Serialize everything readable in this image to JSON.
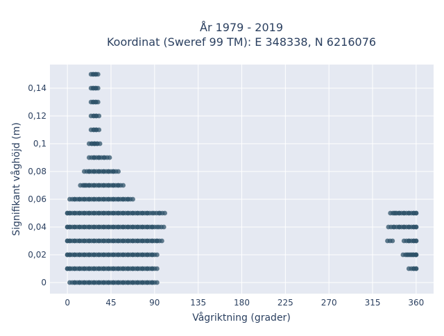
{
  "chart_data": {
    "type": "scatter",
    "title_line1": "År 1979 - 2019",
    "title_line2": "Koordinat (Sweref 99 TM): E 348338, N 6216076",
    "xlabel": "Vågriktning (grader)",
    "ylabel": "Signifikant våghöjd (m)",
    "xlim": [
      -18,
      378
    ],
    "ylim": [
      -0.008,
      0.157
    ],
    "x_ticks": [
      0,
      45,
      90,
      135,
      180,
      225,
      270,
      315,
      360
    ],
    "x_tick_labels": [
      "0",
      "45",
      "90",
      "135",
      "180",
      "225",
      "270",
      "315",
      "360"
    ],
    "y_ticks": [
      0,
      0.02,
      0.04,
      0.06,
      0.08,
      0.1,
      0.12,
      0.14
    ],
    "y_tick_labels": [
      "0",
      "0,02",
      "0,04",
      "0,06",
      "0,08",
      "0,1",
      "0,12",
      "0,14"
    ],
    "grid": true,
    "marker_color": "#2e5168",
    "plot_bg": "#e5e9f2",
    "series": [
      {
        "points": [
          [
            5,
            0
          ],
          [
            10,
            0
          ],
          [
            15,
            0
          ],
          [
            20,
            0
          ],
          [
            25,
            0
          ],
          [
            30,
            0
          ],
          [
            35,
            0
          ],
          [
            40,
            0
          ],
          [
            45,
            0
          ],
          [
            50,
            0
          ],
          [
            55,
            0
          ],
          [
            60,
            0
          ],
          [
            65,
            0
          ],
          [
            70,
            0
          ],
          [
            75,
            0
          ],
          [
            80,
            0
          ],
          [
            85,
            0
          ],
          [
            90,
            0
          ],
          [
            0,
            0.01
          ],
          [
            5,
            0.01
          ],
          [
            10,
            0.01
          ],
          [
            15,
            0.01
          ],
          [
            20,
            0.01
          ],
          [
            25,
            0.01
          ],
          [
            30,
            0.01
          ],
          [
            35,
            0.01
          ],
          [
            40,
            0.01
          ],
          [
            45,
            0.01
          ],
          [
            50,
            0.01
          ],
          [
            55,
            0.01
          ],
          [
            60,
            0.01
          ],
          [
            65,
            0.01
          ],
          [
            70,
            0.01
          ],
          [
            75,
            0.01
          ],
          [
            80,
            0.01
          ],
          [
            85,
            0.01
          ],
          [
            90,
            0.01
          ],
          [
            0,
            0.02
          ],
          [
            5,
            0.02
          ],
          [
            10,
            0.02
          ],
          [
            15,
            0.02
          ],
          [
            20,
            0.02
          ],
          [
            25,
            0.02
          ],
          [
            30,
            0.02
          ],
          [
            35,
            0.02
          ],
          [
            40,
            0.02
          ],
          [
            45,
            0.02
          ],
          [
            50,
            0.02
          ],
          [
            55,
            0.02
          ],
          [
            60,
            0.02
          ],
          [
            65,
            0.02
          ],
          [
            70,
            0.02
          ],
          [
            75,
            0.02
          ],
          [
            80,
            0.02
          ],
          [
            85,
            0.02
          ],
          [
            90,
            0.02
          ],
          [
            0,
            0.03
          ],
          [
            5,
            0.03
          ],
          [
            10,
            0.03
          ],
          [
            15,
            0.03
          ],
          [
            20,
            0.03
          ],
          [
            25,
            0.03
          ],
          [
            30,
            0.03
          ],
          [
            35,
            0.03
          ],
          [
            40,
            0.03
          ],
          [
            45,
            0.03
          ],
          [
            50,
            0.03
          ],
          [
            55,
            0.03
          ],
          [
            60,
            0.03
          ],
          [
            65,
            0.03
          ],
          [
            70,
            0.03
          ],
          [
            75,
            0.03
          ],
          [
            80,
            0.03
          ],
          [
            85,
            0.03
          ],
          [
            90,
            0.03
          ],
          [
            95,
            0.03
          ],
          [
            0,
            0.04
          ],
          [
            5,
            0.04
          ],
          [
            10,
            0.04
          ],
          [
            15,
            0.04
          ],
          [
            20,
            0.04
          ],
          [
            25,
            0.04
          ],
          [
            30,
            0.04
          ],
          [
            35,
            0.04
          ],
          [
            40,
            0.04
          ],
          [
            45,
            0.04
          ],
          [
            50,
            0.04
          ],
          [
            55,
            0.04
          ],
          [
            60,
            0.04
          ],
          [
            65,
            0.04
          ],
          [
            70,
            0.04
          ],
          [
            75,
            0.04
          ],
          [
            80,
            0.04
          ],
          [
            85,
            0.04
          ],
          [
            90,
            0.04
          ],
          [
            97,
            0.04
          ],
          [
            0,
            0.05
          ],
          [
            5,
            0.05
          ],
          [
            10,
            0.05
          ],
          [
            15,
            0.05
          ],
          [
            20,
            0.05
          ],
          [
            25,
            0.05
          ],
          [
            30,
            0.05
          ],
          [
            35,
            0.05
          ],
          [
            40,
            0.05
          ],
          [
            45,
            0.05
          ],
          [
            50,
            0.05
          ],
          [
            55,
            0.05
          ],
          [
            60,
            0.05
          ],
          [
            65,
            0.05
          ],
          [
            70,
            0.05
          ],
          [
            75,
            0.05
          ],
          [
            80,
            0.05
          ],
          [
            85,
            0.05
          ],
          [
            92,
            0.05
          ],
          [
            98,
            0.05
          ],
          [
            5,
            0.06
          ],
          [
            10,
            0.06
          ],
          [
            15,
            0.06
          ],
          [
            20,
            0.06
          ],
          [
            25,
            0.06
          ],
          [
            30,
            0.06
          ],
          [
            35,
            0.06
          ],
          [
            40,
            0.06
          ],
          [
            45,
            0.06
          ],
          [
            50,
            0.06
          ],
          [
            55,
            0.06
          ],
          [
            60,
            0.06
          ],
          [
            65,
            0.06
          ],
          [
            16,
            0.07
          ],
          [
            20,
            0.07
          ],
          [
            25,
            0.07
          ],
          [
            30,
            0.07
          ],
          [
            35,
            0.07
          ],
          [
            40,
            0.07
          ],
          [
            45,
            0.07
          ],
          [
            50,
            0.07
          ],
          [
            55,
            0.07
          ],
          [
            20,
            0.08
          ],
          [
            25,
            0.08
          ],
          [
            30,
            0.08
          ],
          [
            35,
            0.08
          ],
          [
            40,
            0.08
          ],
          [
            45,
            0.08
          ],
          [
            50,
            0.08
          ],
          [
            25,
            0.09
          ],
          [
            30,
            0.09
          ],
          [
            35,
            0.09
          ],
          [
            41,
            0.09
          ],
          [
            25,
            0.1
          ],
          [
            28,
            0.1
          ],
          [
            31,
            0.1
          ],
          [
            27,
            0.11
          ],
          [
            30,
            0.11
          ],
          [
            27,
            0.12
          ],
          [
            30,
            0.12
          ],
          [
            27,
            0.13
          ],
          [
            29,
            0.13
          ],
          [
            27,
            0.14
          ],
          [
            29,
            0.14
          ],
          [
            27,
            0.15
          ],
          [
            29,
            0.15
          ],
          [
            336,
            0.05
          ],
          [
            340,
            0.05
          ],
          [
            345,
            0.05
          ],
          [
            350,
            0.05
          ],
          [
            355,
            0.05
          ],
          [
            360,
            0.05
          ],
          [
            334,
            0.04
          ],
          [
            340,
            0.04
          ],
          [
            345,
            0.04
          ],
          [
            350,
            0.04
          ],
          [
            355,
            0.04
          ],
          [
            360,
            0.04
          ],
          [
            333,
            0.03
          ],
          [
            350,
            0.03
          ],
          [
            355,
            0.03
          ],
          [
            360,
            0.03
          ],
          [
            349,
            0.02
          ],
          [
            353,
            0.02
          ],
          [
            357,
            0.02
          ],
          [
            360,
            0.02
          ],
          [
            355,
            0.01
          ],
          [
            360,
            0.01
          ]
        ]
      }
    ]
  }
}
